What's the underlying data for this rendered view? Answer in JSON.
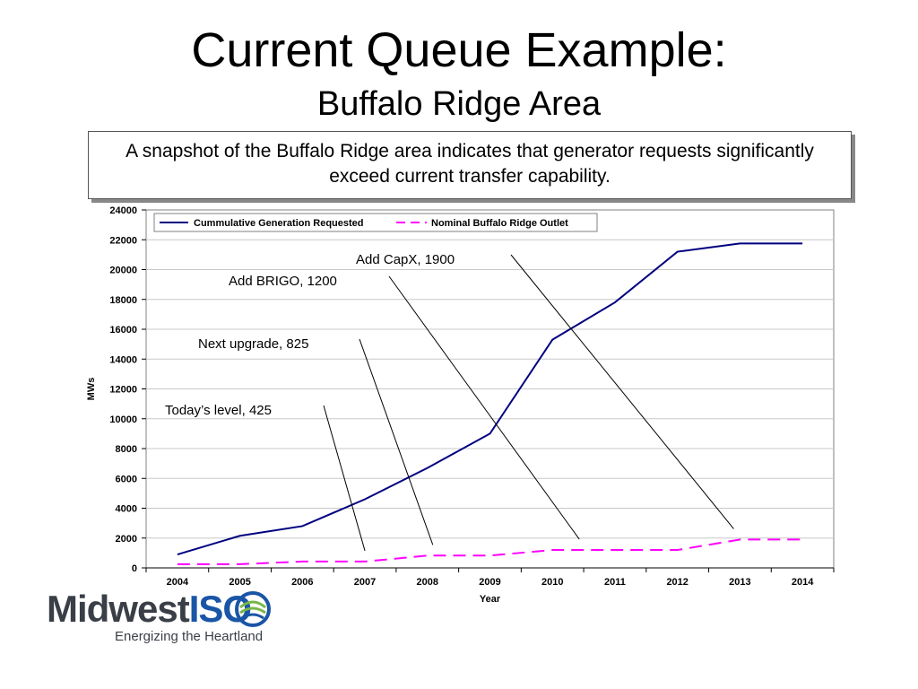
{
  "slide": {
    "title": "Current Queue Example:",
    "subtitle": "Buffalo Ridge Area",
    "callout": "A snapshot of the Buffalo Ridge area indicates that generator requests significantly exceed current transfer capability."
  },
  "logo": {
    "name_part1": "Midwest",
    "name_part2": "ISO",
    "tagline": "Energizing the Heartland",
    "colors": {
      "text": "#3a3f47",
      "accent": "#1a55a6",
      "green": "#7ab648"
    }
  },
  "chart_data": {
    "type": "line",
    "title": "",
    "xlabel": "Year",
    "ylabel": "MWs",
    "x": [
      "2004",
      "2005",
      "2006",
      "2007",
      "2008",
      "2009",
      "2010",
      "2011",
      "2012",
      "2013",
      "2014"
    ],
    "ylim": [
      0,
      24000
    ],
    "yticks": [
      0,
      2000,
      4000,
      6000,
      8000,
      10000,
      12000,
      14000,
      16000,
      18000,
      20000,
      22000,
      24000
    ],
    "grid": "horizontal",
    "legend": "top-left",
    "series": [
      {
        "name": "Cummulative Generation Requested",
        "color": "#000080",
        "style": "solid",
        "values": [
          900,
          2150,
          2800,
          4600,
          6700,
          9000,
          15300,
          17800,
          21200,
          21750,
          21750
        ]
      },
      {
        "name": "Nominal Buffalo Ridge Outlet",
        "color": "#ff00ff",
        "style": "dashed",
        "values": [
          250,
          250,
          425,
          425,
          825,
          825,
          1200,
          1200,
          1200,
          1900,
          1900
        ]
      }
    ],
    "annotations": [
      {
        "text": "Today’s level, 425",
        "x": "2007",
        "y": 425
      },
      {
        "text": "Next upgrade, 825",
        "x": "2008",
        "y": 825
      },
      {
        "text": "Add BRIGO, 1200",
        "x": "2010",
        "y": 1200
      },
      {
        "text": "Add CapX, 1900",
        "x": "2013",
        "y": 1900
      }
    ]
  }
}
